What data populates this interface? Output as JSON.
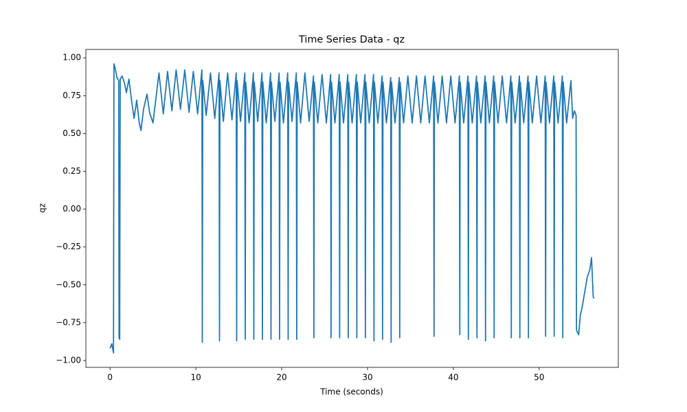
{
  "chart_data": {
    "type": "line",
    "title": "Time Series Data - qz",
    "x_label": "Time (seconds)",
    "y_label": "qz",
    "color": "#1f77b4",
    "x": [
      0,
      0.2,
      0.4,
      0.45,
      0.6,
      0.8,
      1.0,
      1.05,
      1.12,
      1.18,
      1.4,
      1.7,
      1.9,
      2.2,
      2.5,
      2.8,
      3.1,
      3.4,
      3.6,
      3.9,
      4.3,
      4.6,
      5.0,
      5.7,
      6.2,
      6.7,
      7.2,
      7.7,
      8.2,
      8.7,
      9.2,
      9.7,
      10.2,
      10.7,
      10.75,
      10.8,
      11.2,
      11.7,
      12.2,
      12.7,
      12.75,
      12.8,
      13.2,
      13.7,
      14.2,
      14.7,
      14.75,
      14.8,
      15.2,
      15.7,
      15.75,
      15.8,
      16.2,
      16.7,
      16.75,
      16.8,
      17.2,
      17.7,
      17.75,
      17.8,
      18.2,
      18.7,
      18.75,
      18.8,
      19.2,
      19.7,
      19.75,
      19.8,
      20.2,
      20.7,
      20.75,
      20.8,
      21.2,
      21.7,
      21.75,
      21.8,
      22.2,
      22.7,
      23.2,
      23.7,
      23.75,
      23.8,
      24.2,
      24.7,
      25.2,
      25.7,
      25.75,
      25.8,
      26.2,
      26.7,
      26.75,
      26.8,
      27.2,
      27.7,
      27.75,
      27.8,
      28.2,
      28.7,
      28.75,
      28.8,
      29.2,
      29.7,
      29.75,
      29.8,
      30.2,
      30.7,
      30.75,
      30.8,
      31.2,
      31.7,
      31.75,
      31.8,
      32.2,
      32.7,
      32.75,
      32.8,
      33.2,
      33.7,
      33.75,
      33.8,
      34.2,
      34.7,
      35.2,
      35.7,
      36.2,
      36.7,
      37.2,
      37.7,
      37.75,
      37.8,
      38.2,
      38.7,
      39.2,
      39.7,
      40.2,
      40.7,
      40.75,
      40.8,
      41.2,
      41.7,
      41.75,
      41.8,
      42.2,
      42.7,
      42.75,
      42.8,
      43.2,
      43.7,
      43.75,
      43.8,
      44.2,
      44.7,
      44.75,
      44.8,
      45.2,
      45.7,
      46.2,
      46.7,
      46.75,
      46.8,
      47.2,
      47.7,
      47.75,
      47.8,
      48.2,
      48.7,
      48.75,
      48.8,
      49.2,
      49.7,
      50.2,
      50.7,
      50.75,
      50.8,
      51.2,
      51.7,
      51.75,
      51.8,
      52.2,
      52.7,
      52.75,
      52.8,
      53.2,
      53.7,
      53.9,
      54.1,
      54.3,
      54.35,
      54.6,
      54.8,
      55.0,
      55.3,
      55.6,
      55.9,
      56.1,
      56.3,
      56.4
    ],
    "values": [
      -0.92,
      -0.89,
      -0.95,
      0.96,
      0.93,
      0.87,
      0.85,
      -0.85,
      -0.86,
      0.86,
      0.88,
      0.83,
      0.77,
      0.86,
      0.72,
      0.6,
      0.72,
      0.57,
      0.52,
      0.66,
      0.76,
      0.64,
      0.57,
      0.9,
      0.63,
      0.91,
      0.65,
      0.92,
      0.66,
      0.92,
      0.64,
      0.91,
      0.63,
      0.92,
      -0.88,
      0.85,
      0.62,
      0.9,
      0.6,
      0.9,
      -0.87,
      0.85,
      0.58,
      0.9,
      0.59,
      0.9,
      -0.87,
      0.85,
      0.58,
      0.9,
      -0.86,
      0.84,
      0.57,
      0.9,
      -0.86,
      0.84,
      0.58,
      0.9,
      -0.86,
      0.84,
      0.57,
      0.9,
      -0.86,
      0.84,
      0.58,
      0.9,
      -0.86,
      0.84,
      0.57,
      0.9,
      -0.86,
      0.84,
      0.58,
      0.9,
      -0.86,
      0.84,
      0.57,
      0.9,
      0.58,
      0.88,
      -0.85,
      0.84,
      0.57,
      0.89,
      0.57,
      0.89,
      -0.85,
      0.84,
      0.57,
      0.89,
      -0.85,
      0.84,
      0.57,
      0.89,
      -0.85,
      0.84,
      0.57,
      0.89,
      -0.85,
      0.84,
      0.57,
      0.89,
      -0.85,
      0.84,
      0.57,
      0.89,
      -0.87,
      0.84,
      0.57,
      0.88,
      -0.86,
      0.84,
      0.57,
      0.87,
      -0.88,
      0.84,
      0.57,
      0.87,
      -0.85,
      0.84,
      0.57,
      0.88,
      0.57,
      0.88,
      0.57,
      0.88,
      0.57,
      0.88,
      -0.84,
      0.84,
      0.57,
      0.88,
      0.57,
      0.88,
      0.57,
      0.88,
      -0.83,
      0.84,
      0.57,
      0.88,
      -0.86,
      0.84,
      0.57,
      0.88,
      -0.85,
      0.84,
      0.57,
      0.88,
      -0.87,
      0.84,
      0.57,
      0.88,
      -0.85,
      0.84,
      0.57,
      0.88,
      0.57,
      0.88,
      -0.85,
      0.84,
      0.57,
      0.88,
      -0.85,
      0.84,
      0.57,
      0.88,
      -0.85,
      0.84,
      0.57,
      0.88,
      0.57,
      0.88,
      -0.84,
      0.84,
      0.57,
      0.88,
      -0.84,
      0.84,
      0.57,
      0.88,
      -0.85,
      0.84,
      0.57,
      0.85,
      0.6,
      0.65,
      0.62,
      -0.8,
      -0.83,
      -0.7,
      -0.65,
      -0.55,
      -0.45,
      -0.4,
      -0.32,
      -0.58,
      -0.59
    ],
    "xlim": [
      -2.82,
      59.22
    ],
    "ylim": [
      -1.0455,
      1.0555
    ],
    "xticks": [
      0,
      10,
      20,
      30,
      40,
      50
    ],
    "yticks": [
      {
        "value": -1,
        "label": "−1.00"
      },
      {
        "value": -0.75,
        "label": "−0.75"
      },
      {
        "value": -0.5,
        "label": "−0.50"
      },
      {
        "value": -0.25,
        "label": "−0.25"
      },
      {
        "value": 0,
        "label": "0.00"
      },
      {
        "value": 0.25,
        "label": "0.25"
      },
      {
        "value": 0.5,
        "label": "0.50"
      },
      {
        "value": 0.75,
        "label": "0.75"
      },
      {
        "value": 1,
        "label": "1.00"
      }
    ]
  }
}
